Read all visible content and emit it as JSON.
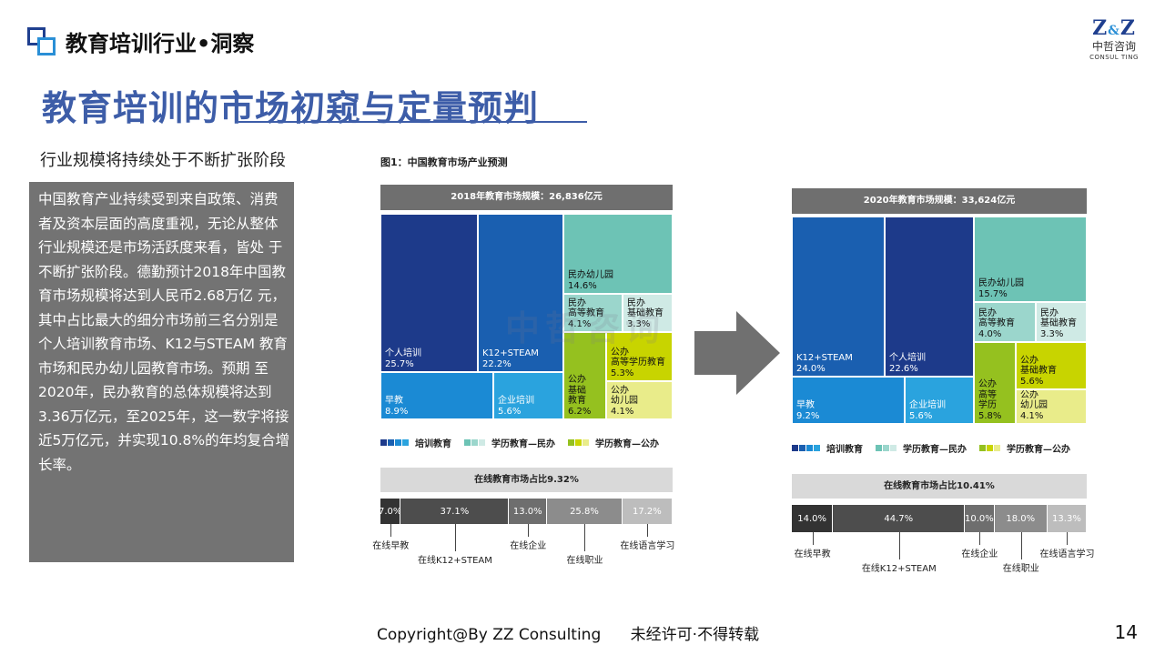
{
  "header": {
    "section_title": "教育培训行业•洞察",
    "brand_logo": "Z&Z",
    "brand_cn": "中哲咨询",
    "brand_en": "CONSUL TING"
  },
  "main_title": "教育培训的市场初窥与定量预判",
  "subtitle": "行业规模将持续处于不断扩张阶段",
  "body_text": "中国教育产业持续受到来自政策、消费 者及资本层面的高度重视，无论从整体行业规模还是市场活跃度来看，皆处 于不断扩张阶段。德勤预计2018年中国教育市场规模将达到人民币2.68万亿 元，其中占比最大的细分市场前三名分别是个人培训教育市场、K12与STEAM 教育市场和民办幼儿园教育市场。预期 至2020年，民办教育的总体规模将达到3.36万亿元，至2025年，这一数字将接 近5万亿元，并实现10.8%的年均复合增长率。",
  "figure_title": "图1：中国教育市场产业预测",
  "legend": {
    "items": [
      "培训教育",
      "学历教育—民办",
      "学历教育—公办"
    ],
    "colors": [
      [
        "#1d3a8a",
        "#1a5fb0",
        "#1b8ad4",
        "#2aa3de"
      ],
      [
        "#6dc3b5",
        "#9bd6cc",
        "#cfeae5"
      ],
      [
        "#95c11f",
        "#c8d400",
        "#e9ec8a"
      ]
    ]
  },
  "watermark": "中哲咨询",
  "arrow_icon": "right-arrow-icon",
  "chart_data": [
    {
      "type": "treemap",
      "title": "2018年教育市场规模：26,836亿元",
      "cells": [
        {
          "name": "个人培训",
          "value": 25.7,
          "group": "培训教育",
          "color": "#1d3a8a"
        },
        {
          "name": "K12+STEAM",
          "value": 22.2,
          "group": "培训教育",
          "color": "#1a5fb0"
        },
        {
          "name": "早教",
          "value": 8.9,
          "group": "培训教育",
          "color": "#1b8ad4"
        },
        {
          "name": "企业培训",
          "value": 5.6,
          "group": "培训教育",
          "color": "#2aa3de"
        },
        {
          "name": "民办幼儿园",
          "value": 14.6,
          "group": "学历教育—民办",
          "color": "#6dc3b5"
        },
        {
          "name": "民办高等教育",
          "value": 4.1,
          "group": "学历教育—民办",
          "color": "#9bd6cc"
        },
        {
          "name": "民办基础教育",
          "value": 3.3,
          "group": "学历教育—民办",
          "color": "#cfeae5"
        },
        {
          "name": "公办高等学历教育",
          "value": 5.3,
          "group": "学历教育—公办",
          "color": "#c8d400"
        },
        {
          "name": "公办基础教育",
          "value": 6.2,
          "group": "学历教育—公办",
          "color": "#95c11f"
        },
        {
          "name": "公办幼儿园",
          "value": 4.1,
          "group": "学历教育—公办",
          "color": "#e9ec8a"
        }
      ],
      "labels": {
        "个人培训": [
          "个人培训",
          "25.7%"
        ],
        "K12+STEAM": [
          "K12+STEAM",
          "22.2%"
        ],
        "早教": [
          "早教",
          "8.9%"
        ],
        "企业培训": [
          "企业培训",
          "5.6%"
        ],
        "民办幼儿园": [
          "民办幼儿园",
          "14.6%"
        ],
        "民办高等教育": [
          "民办",
          "高等教育",
          "4.1%"
        ],
        "民办基础教育": [
          "民办",
          "基础教育",
          "3.3%"
        ],
        "公办高等学历教育": [
          "公办",
          "高等学历教育",
          "5.3%"
        ],
        "公办基础教育": [
          "公办",
          "基础",
          "教育",
          "6.2%"
        ],
        "公办幼儿园": [
          "公办",
          "幼儿园",
          "4.1%"
        ]
      }
    },
    {
      "type": "bar",
      "stacked": true,
      "title": "在线教育市场占比9.32%",
      "categories": [
        "在线早教",
        "在线K12+STEAM",
        "在线企业",
        "在线职业",
        "在线语言学习"
      ],
      "values": [
        7.0,
        37.1,
        13.0,
        25.8,
        17.2
      ],
      "value_labels": [
        "7.0%",
        "37.1%",
        "13.0%",
        "25.8%",
        "17.2%"
      ],
      "colors": [
        "#333333",
        "#4d4d4d",
        "#6e6e6e",
        "#8c8c8c",
        "#bdbdbd"
      ]
    },
    {
      "type": "treemap",
      "title": "2020年教育市场规模：33,624亿元",
      "cells": [
        {
          "name": "K12+STEAM",
          "value": 24.0,
          "group": "培训教育",
          "color": "#1a5fb0"
        },
        {
          "name": "个人培训",
          "value": 22.6,
          "group": "培训教育",
          "color": "#1d3a8a"
        },
        {
          "name": "早教",
          "value": 9.2,
          "group": "培训教育",
          "color": "#1b8ad4"
        },
        {
          "name": "企业培训",
          "value": 5.6,
          "group": "培训教育",
          "color": "#2aa3de"
        },
        {
          "name": "民办幼儿园",
          "value": 15.7,
          "group": "学历教育—民办",
          "color": "#6dc3b5"
        },
        {
          "name": "民办高等教育",
          "value": 4.0,
          "group": "学历教育—民办",
          "color": "#9bd6cc"
        },
        {
          "name": "民办基础教育",
          "value": 3.3,
          "group": "学历教育—民办",
          "color": "#cfeae5"
        },
        {
          "name": "公办高等学历",
          "value": 5.8,
          "group": "学历教育—公办",
          "color": "#95c11f"
        },
        {
          "name": "公办基础教育",
          "value": 5.6,
          "group": "学历教育—公办",
          "color": "#c8d400"
        },
        {
          "name": "公办幼儿园",
          "value": 4.1,
          "group": "学历教育—公办",
          "color": "#e9ec8a"
        }
      ],
      "labels": {
        "K12+STEAM": [
          "K12+STEAM",
          "24.0%"
        ],
        "个人培训": [
          "个人培训",
          "22.6%"
        ],
        "早教": [
          "早教",
          "9.2%"
        ],
        "企业培训": [
          "企业培训",
          "5.6%"
        ],
        "民办幼儿园": [
          "民办幼儿园",
          "15.7%"
        ],
        "民办高等教育": [
          "民办",
          "高等教育",
          "4.0%"
        ],
        "民办基础教育": [
          "民办",
          "基础教育",
          "3.3%"
        ],
        "公办高等学历": [
          "公办",
          "高等",
          "学历",
          "5.8%"
        ],
        "公办基础教育": [
          "公办",
          "基础教育",
          "5.6%"
        ],
        "公办幼儿园": [
          "公办",
          "幼儿园",
          "4.1%"
        ]
      }
    },
    {
      "type": "bar",
      "stacked": true,
      "title": "在线教育市场占比10.41%",
      "categories": [
        "在线早教",
        "在线K12+STEAM",
        "在线企业",
        "在线职业",
        "在线语言学习"
      ],
      "values": [
        14.0,
        44.7,
        10.0,
        18.0,
        13.3
      ],
      "value_labels": [
        "14.0%",
        "44.7%",
        "10.0%",
        "18.0%",
        "13.3%"
      ],
      "colors": [
        "#333333",
        "#4d4d4d",
        "#6e6e6e",
        "#8c8c8c",
        "#bdbdbd"
      ]
    }
  ],
  "footer": {
    "copyright": "Copyright@By ZZ Consulting      未经许可·不得转载",
    "page_number": "14"
  }
}
